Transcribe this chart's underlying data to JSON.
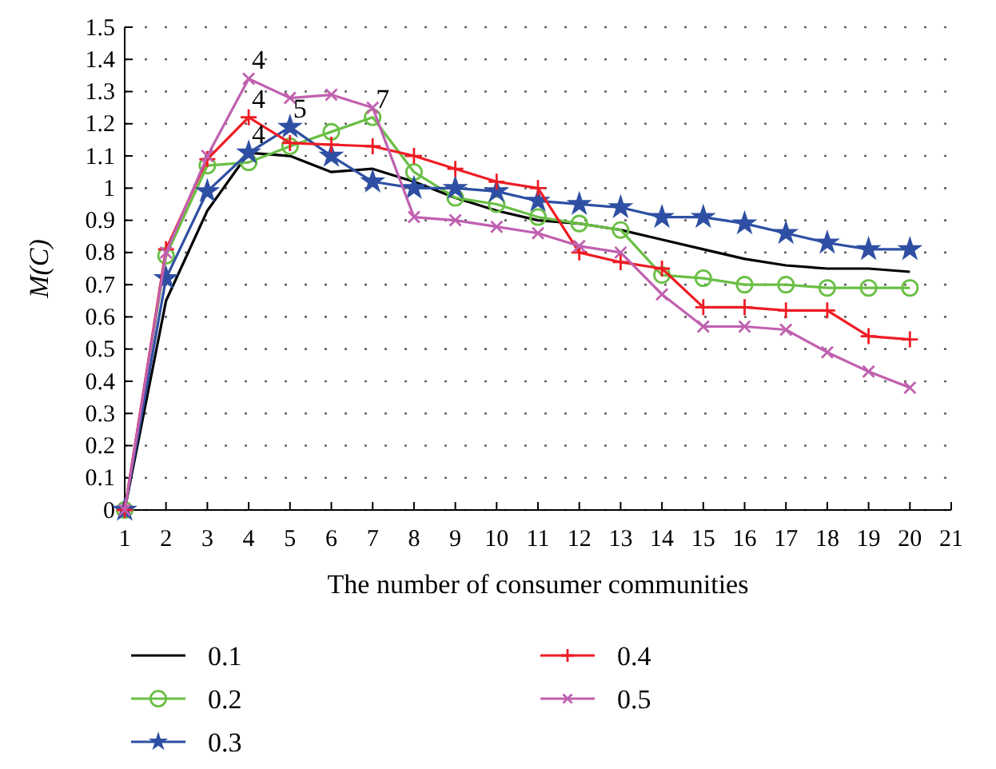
{
  "chart_data": {
    "type": "line",
    "xlabel": "The number of consumer communities",
    "ylabel": "M(C)",
    "x": [
      1,
      2,
      3,
      4,
      5,
      6,
      7,
      8,
      9,
      10,
      11,
      12,
      13,
      14,
      15,
      16,
      17,
      18,
      19,
      20
    ],
    "xlim": [
      1,
      21
    ],
    "xticks": [
      1,
      2,
      3,
      4,
      5,
      6,
      7,
      8,
      9,
      10,
      11,
      12,
      13,
      14,
      15,
      16,
      17,
      18,
      19,
      20,
      21
    ],
    "ylim": [
      0,
      1.5
    ],
    "yticks": [
      0,
      0.1,
      0.2,
      0.3,
      0.4,
      0.5,
      0.6,
      0.7,
      0.8,
      0.9,
      1,
      1.1,
      1.2,
      1.3,
      1.4,
      1.5
    ],
    "grid": "y",
    "legend": "bottom",
    "series": [
      {
        "name": "0.1",
        "color": "#000000",
        "marker": "none",
        "values": [
          0,
          0.65,
          0.93,
          1.11,
          1.1,
          1.05,
          1.06,
          1.02,
          0.97,
          0.93,
          0.9,
          0.89,
          0.87,
          0.84,
          0.81,
          0.78,
          0.76,
          0.75,
          0.75,
          0.74
        ]
      },
      {
        "name": "0.2",
        "color": "#6abf45",
        "marker": "circle",
        "values": [
          0,
          0.79,
          1.07,
          1.08,
          1.13,
          1.175,
          1.22,
          1.05,
          0.97,
          0.95,
          0.91,
          0.89,
          0.87,
          0.73,
          0.72,
          0.7,
          0.7,
          0.69,
          0.69,
          0.69
        ]
      },
      {
        "name": "0.3",
        "color": "#2e4fa3",
        "marker": "star",
        "values": [
          0,
          0.72,
          0.99,
          1.11,
          1.19,
          1.1,
          1.02,
          1.0,
          1.0,
          0.99,
          0.96,
          0.95,
          0.94,
          0.91,
          0.91,
          0.89,
          0.86,
          0.83,
          0.81,
          0.81
        ]
      },
      {
        "name": "0.4",
        "color": "#ee1c24",
        "marker": "cross",
        "values": [
          0,
          0.81,
          1.09,
          1.22,
          1.14,
          1.135,
          1.13,
          1.1,
          1.06,
          1.02,
          1.0,
          0.8,
          0.77,
          0.75,
          0.63,
          0.63,
          0.62,
          0.62,
          0.54,
          0.53
        ]
      },
      {
        "name": "0.5",
        "color": "#c060b0",
        "marker": "x",
        "values": [
          0,
          0.8,
          1.1,
          1.34,
          1.28,
          1.29,
          1.25,
          0.91,
          0.9,
          0.88,
          0.86,
          0.82,
          0.8,
          0.67,
          0.57,
          0.57,
          0.56,
          0.49,
          0.43,
          0.38
        ]
      }
    ],
    "annotations": [
      {
        "text": "4",
        "x": 4,
        "y": 1.34
      },
      {
        "text": "4",
        "x": 4,
        "y": 1.22
      },
      {
        "text": "4",
        "x": 4,
        "y": 1.11
      },
      {
        "text": "5",
        "x": 5,
        "y": 1.19
      },
      {
        "text": "7",
        "x": 7,
        "y": 1.22
      }
    ]
  }
}
